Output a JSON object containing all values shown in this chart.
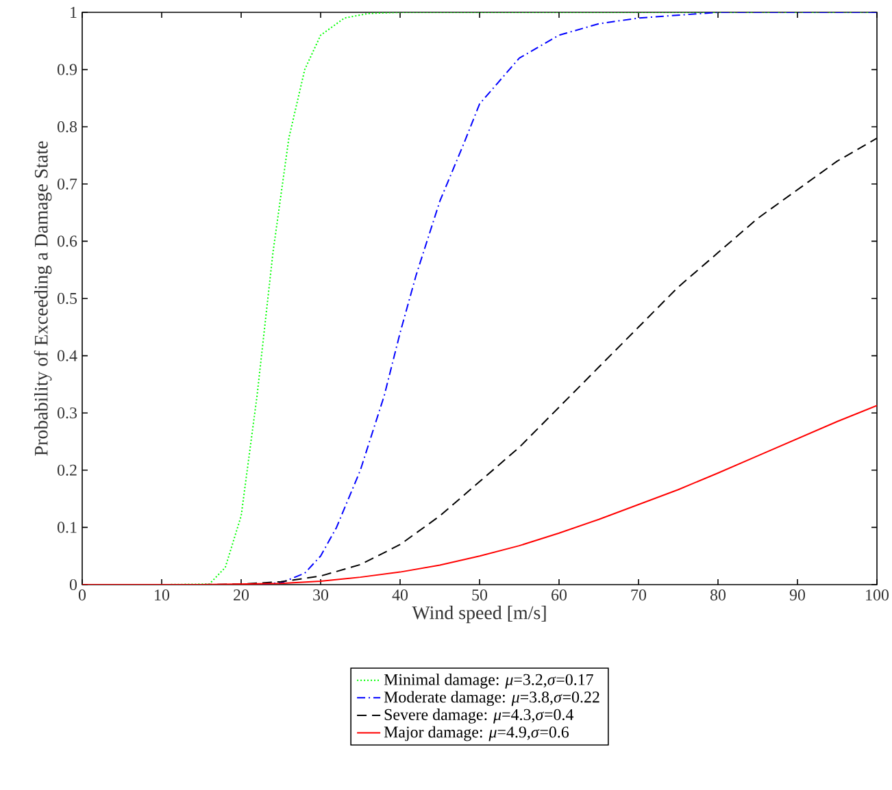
{
  "chart_data": {
    "type": "line",
    "xlabel": "Wind speed [m/s]",
    "ylabel": "Probability of Exceeding a Damage State",
    "xlim": [
      0,
      100
    ],
    "ylim": [
      0,
      1
    ],
    "xticks": [
      0,
      10,
      20,
      30,
      40,
      50,
      60,
      70,
      80,
      90,
      100
    ],
    "yticks": [
      0,
      0.1,
      0.2,
      0.3,
      0.4,
      0.5,
      0.6,
      0.7,
      0.8,
      0.9,
      1
    ],
    "legend": "bottom",
    "grid": false,
    "marker": "none",
    "series": [
      {
        "name": "Minimal damage:  *μ*=3.2,*σ*=0.17",
        "color": "#00ff00",
        "line_style": "dotted",
        "x": [
          0,
          10,
          16,
          18,
          20,
          22,
          24,
          26,
          28,
          30,
          33,
          36,
          40,
          100
        ],
        "values": [
          0,
          0,
          0.001,
          0.03,
          0.12,
          0.33,
          0.58,
          0.78,
          0.9,
          0.96,
          0.99,
          0.998,
          1,
          1
        ]
      },
      {
        "name": "Moderate damage: *μ*=3.8,*σ*=0.22",
        "color": "#0000ff",
        "line_style": "dashdot",
        "x": [
          0,
          20,
          25,
          28,
          30,
          32,
          35,
          38,
          40,
          42,
          45,
          48,
          50,
          55,
          60,
          65,
          70,
          80,
          100
        ],
        "values": [
          0,
          0,
          0.003,
          0.02,
          0.05,
          0.1,
          0.2,
          0.33,
          0.44,
          0.54,
          0.67,
          0.77,
          0.84,
          0.92,
          0.96,
          0.98,
          0.99,
          1,
          1
        ]
      },
      {
        "name": "Severe damage:    *μ*=4.3,*σ*=0.4",
        "color": "#000000",
        "line_style": "dashed",
        "x": [
          0,
          15,
          20,
          25,
          30,
          35,
          40,
          45,
          50,
          55,
          60,
          65,
          70,
          75,
          80,
          85,
          90,
          95,
          100
        ],
        "values": [
          0,
          0,
          0.001,
          0.005,
          0.015,
          0.035,
          0.07,
          0.12,
          0.18,
          0.24,
          0.31,
          0.38,
          0.45,
          0.52,
          0.58,
          0.64,
          0.69,
          0.74,
          0.78
        ]
      },
      {
        "name": "Major damage:     *μ*=4.9,*σ*=0.6",
        "color": "#ff0000",
        "line_style": "solid",
        "x": [
          0,
          15,
          20,
          25,
          30,
          35,
          40,
          45,
          50,
          55,
          60,
          65,
          70,
          75,
          80,
          85,
          90,
          95,
          100
        ],
        "values": [
          0,
          0,
          0.001,
          0.002,
          0.006,
          0.013,
          0.022,
          0.034,
          0.05,
          0.068,
          0.09,
          0.114,
          0.14,
          0.166,
          0.195,
          0.225,
          0.255,
          0.285,
          0.313
        ]
      }
    ]
  }
}
